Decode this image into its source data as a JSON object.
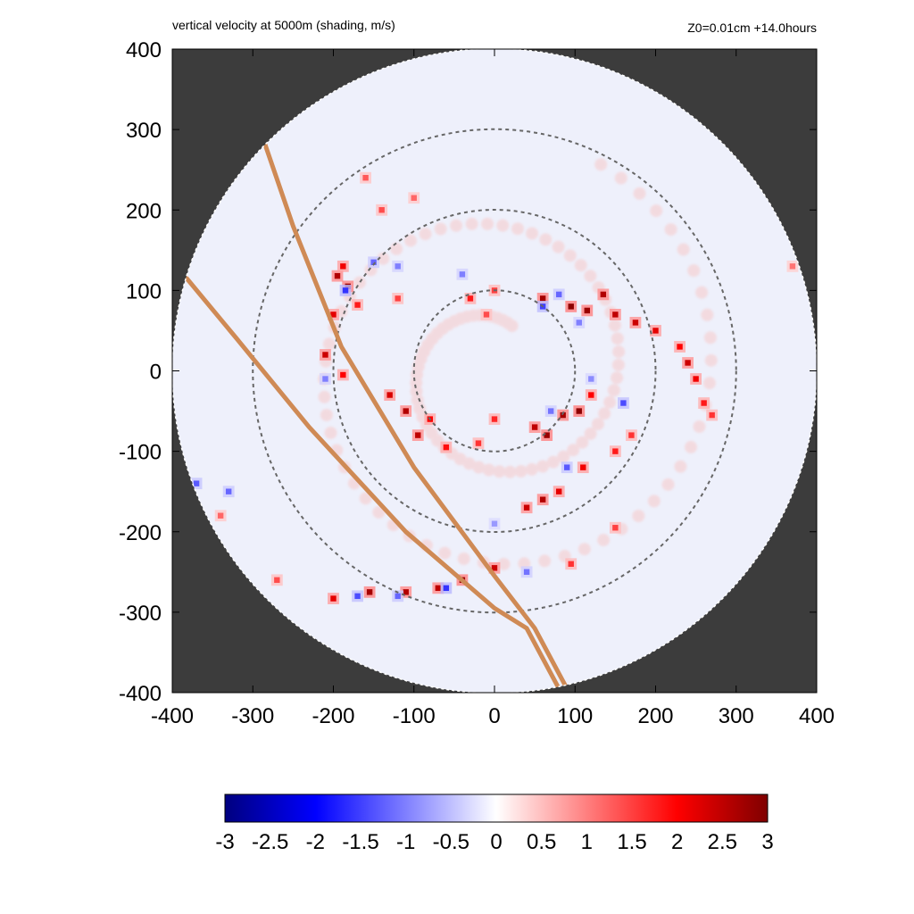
{
  "header": {
    "left_title": "vertical velocity at 5000m (shading, m/s)",
    "right_title": "Z0=0.01cm  +14.0hours"
  },
  "colors": {
    "outside_domain": "#3c3c3c",
    "field_background": "#eef0fb",
    "track": "#cf8a55",
    "range_rings": "#666666",
    "colormap": [
      "#00007f",
      "#0000ff",
      "#ffffff",
      "#ff0000",
      "#7f0000"
    ]
  },
  "chart_data": {
    "type": "heatmap",
    "title": "vertical velocity at 5000m (shading, m/s)",
    "annotation": "Z0=0.01cm  +14.0hours",
    "xlim": [
      -400,
      400
    ],
    "ylim": [
      -400,
      400
    ],
    "x_ticks": [
      "-400",
      "-300",
      "-200",
      "-100",
      "0",
      "100",
      "200",
      "300",
      "400"
    ],
    "y_ticks": [
      "400",
      "300",
      "200",
      "100",
      "0",
      "-100",
      "-200",
      "-300",
      "-400"
    ],
    "x_tick_values": [
      -400,
      -300,
      -200,
      -100,
      0,
      100,
      200,
      300,
      400
    ],
    "y_tick_values": [
      400,
      300,
      200,
      100,
      0,
      -100,
      -200,
      -300,
      -400
    ],
    "domain_radius": 400,
    "range_rings": [
      100,
      200,
      300
    ],
    "tracks": [
      [
        [
          -285,
          282
        ],
        [
          -250,
          180
        ],
        [
          -190,
          30
        ],
        [
          -100,
          -120
        ],
        [
          0,
          -255
        ],
        [
          50,
          -320
        ],
        [
          90,
          -395
        ]
      ],
      [
        [
          -382,
          115
        ],
        [
          -320,
          40
        ],
        [
          -230,
          -70
        ],
        [
          -110,
          -200
        ],
        [
          0,
          -295
        ],
        [
          40,
          -320
        ],
        [
          80,
          -395
        ]
      ]
    ],
    "colorbar": {
      "min": -3,
      "max": 3,
      "tick_labels": [
        "-3",
        "-2.5",
        "-2",
        "-1.5",
        "-1",
        "-0.5",
        "0",
        "0.5",
        "1",
        "1.5",
        "2",
        "2.5",
        "3"
      ],
      "tick_values": [
        -3,
        -2.5,
        -2,
        -1.5,
        -1,
        -0.5,
        0,
        0.5,
        1,
        1.5,
        2,
        2.5,
        3
      ]
    },
    "updraft_cells": [
      [
        -195,
        118,
        2.6
      ],
      [
        -182,
        105,
        2.8
      ],
      [
        -200,
        70,
        2.2
      ],
      [
        -170,
        82,
        1.8
      ],
      [
        -188,
        130,
        2.1
      ],
      [
        -120,
        90,
        1.5
      ],
      [
        -210,
        20,
        2.4
      ],
      [
        -188,
        -5,
        2.0
      ],
      [
        -130,
        -30,
        2.3
      ],
      [
        -110,
        -50,
        2.6
      ],
      [
        -95,
        -80,
        2.5
      ],
      [
        -80,
        -60,
        2.0
      ],
      [
        -60,
        -95,
        1.9
      ],
      [
        -20,
        -90,
        1.6
      ],
      [
        0,
        -60,
        1.7
      ],
      [
        50,
        -70,
        2.5
      ],
      [
        65,
        -80,
        2.8
      ],
      [
        85,
        -55,
        2.7
      ],
      [
        105,
        -50,
        2.9
      ],
      [
        120,
        -30,
        2.0
      ],
      [
        60,
        -160,
        2.6
      ],
      [
        40,
        -170,
        2.4
      ],
      [
        80,
        -150,
        2.2
      ],
      [
        110,
        -120,
        2.1
      ],
      [
        150,
        -100,
        1.8
      ],
      [
        170,
        -80,
        1.6
      ],
      [
        150,
        -195,
        1.5
      ],
      [
        0,
        -245,
        2.4
      ],
      [
        -40,
        -260,
        2.8
      ],
      [
        -70,
        -270,
        2.5
      ],
      [
        -110,
        -275,
        2.6
      ],
      [
        -155,
        -275,
        2.7
      ],
      [
        -200,
        -283,
        2.2
      ],
      [
        -270,
        -260,
        1.4
      ],
      [
        -340,
        -180,
        1.2
      ],
      [
        60,
        90,
        2.7
      ],
      [
        95,
        80,
        2.9
      ],
      [
        115,
        75,
        2.8
      ],
      [
        135,
        95,
        2.6
      ],
      [
        150,
        70,
        2.5
      ],
      [
        175,
        60,
        2.4
      ],
      [
        200,
        50,
        2.2
      ],
      [
        230,
        30,
        2.0
      ],
      [
        240,
        10,
        2.4
      ],
      [
        250,
        -10,
        2.1
      ],
      [
        260,
        -40,
        1.8
      ],
      [
        270,
        -55,
        1.6
      ],
      [
        -160,
        240,
        1.3
      ],
      [
        -140,
        200,
        1.4
      ],
      [
        -100,
        215,
        1.2
      ],
      [
        -30,
        90,
        1.8
      ],
      [
        0,
        100,
        1.5
      ],
      [
        -10,
        70,
        1.4
      ],
      [
        95,
        -240,
        1.6
      ],
      [
        370,
        130,
        1.1
      ]
    ],
    "downdraft_cells": [
      [
        -185,
        100,
        -1.6
      ],
      [
        -150,
        135,
        -1.2
      ],
      [
        -120,
        130,
        -1.0
      ],
      [
        60,
        80,
        -1.5
      ],
      [
        80,
        95,
        -1.2
      ],
      [
        105,
        60,
        -1.0
      ],
      [
        160,
        -40,
        -1.4
      ],
      [
        70,
        -50,
        -1.1
      ],
      [
        90,
        -120,
        -1.3
      ],
      [
        -60,
        -270,
        -1.6
      ],
      [
        -120,
        -280,
        -1.2
      ],
      [
        -170,
        -280,
        -1.4
      ],
      [
        40,
        -250,
        -1.1
      ],
      [
        -40,
        120,
        -1.0
      ],
      [
        120,
        -10,
        -0.9
      ],
      [
        -210,
        -10,
        -1.0
      ],
      [
        0,
        -190,
        -0.8
      ],
      [
        -330,
        -150,
        -1.2
      ],
      [
        -370,
        -140,
        -1.3
      ]
    ]
  }
}
